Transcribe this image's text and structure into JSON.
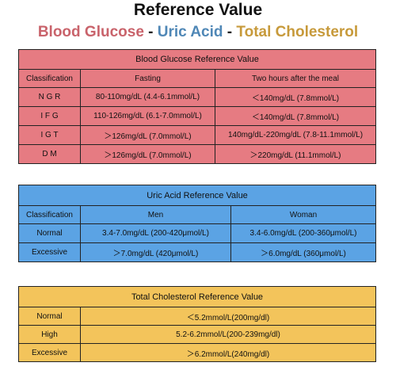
{
  "title": "Reference Value",
  "subtitle": {
    "part1": "Blood Glucose",
    "sep1": " - ",
    "part2": "Uric Acid",
    "sep2": " - ",
    "part3": "Total Cholesterol"
  },
  "colors": {
    "glucose": "#e67b82",
    "uric": "#5ba3e4",
    "cholesterol": "#f3c45b",
    "glucose_text": "#c9636b",
    "uric_text": "#4f87b6",
    "cholesterol_text": "#c79a3b"
  },
  "glucose": {
    "caption": "Blood Glucose Reference Value",
    "headers": [
      "Classification",
      "Fasting",
      "Two hours after the meal"
    ],
    "rows": [
      [
        "N G R",
        "80-110mg/dL (4.4-6.1mmol/L)",
        "＜140mg/dL (7.8mmol/L)"
      ],
      [
        "I F G",
        "110-126mg/dL (6.1-7.0mmol/L)",
        "＜140mg/dL (7.8mmol/L)"
      ],
      [
        "I G T",
        "＞126mg/dL (7.0mmol/L)",
        "140mg/dL-220mg/dL (7.8-11.1mmol/L)"
      ],
      [
        "D M",
        "＞126mg/dL (7.0mmol/L)",
        "＞220mg/dL (11.1mmol/L)"
      ]
    ]
  },
  "uric": {
    "caption": "Uric Acid Reference Value",
    "headers": [
      "Classification",
      "Men",
      "Woman"
    ],
    "rows": [
      [
        "Normal",
        "3.4-7.0mg/dL (200-420μmol/L)",
        "3.4-6.0mg/dL (200-360μmol/L)"
      ],
      [
        "Excessive",
        "＞7.0mg/dL (420μmol/L)",
        "＞6.0mg/dL (360μmol/L)"
      ]
    ]
  },
  "cholesterol": {
    "caption": "Total Cholesterol Reference Value",
    "rows": [
      [
        "Normal",
        "＜5.2mmol/L(200mg/dl)"
      ],
      [
        "High",
        "5.2-6.2mmol/L(200-239mg/dl)"
      ],
      [
        "Excessive",
        "＞6.2mmol/L(240mg/dl)"
      ]
    ]
  }
}
